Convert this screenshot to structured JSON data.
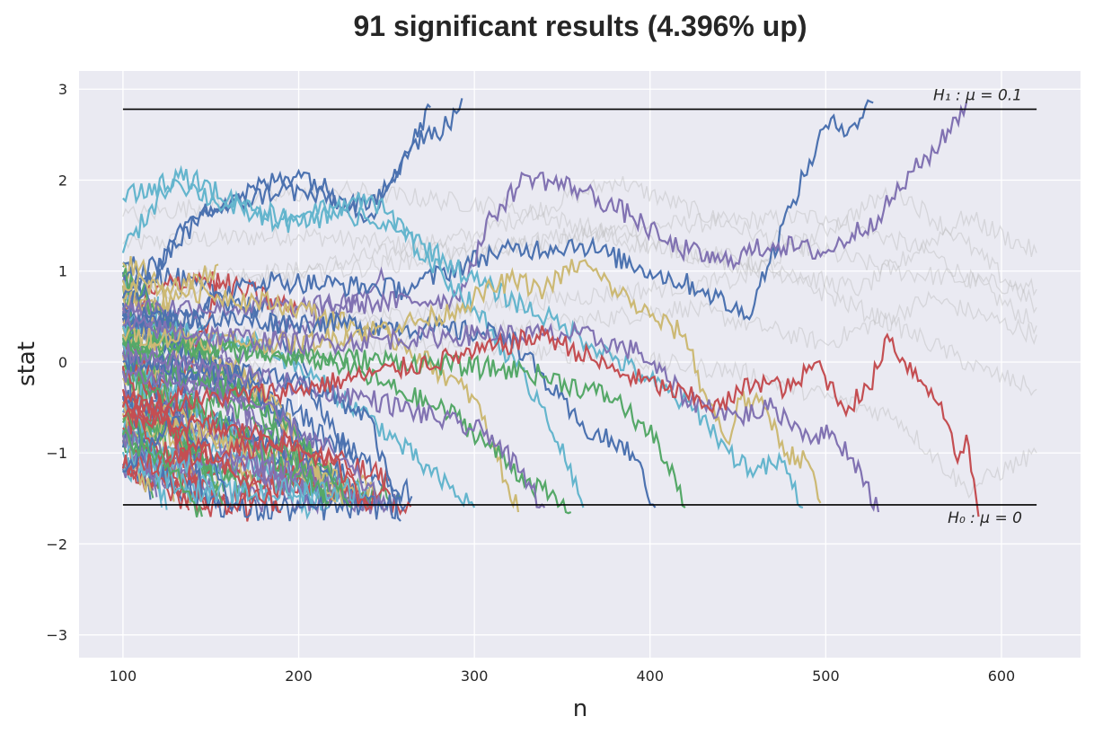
{
  "chart_data": {
    "type": "line",
    "title": "91 significant results (4.396% up)",
    "xlabel": "n",
    "ylabel": "stat",
    "xlim": [
      75,
      645
    ],
    "ylim": [
      -3.25,
      3.2
    ],
    "xticks": [
      100,
      200,
      300,
      400,
      500,
      600
    ],
    "yticks": [
      -3,
      -2,
      -1,
      0,
      1,
      2,
      3
    ],
    "xtick_labels": [
      "100",
      "200",
      "300",
      "400",
      "500",
      "600"
    ],
    "ytick_labels": [
      "−3",
      "−2",
      "−1",
      "0",
      "1",
      "2",
      "3"
    ],
    "grid": true,
    "background": "#eaeaf2",
    "boundaries": [
      {
        "label": "H₁ : μ = 0.1",
        "y": 2.78,
        "x_range": [
          100,
          620
        ]
      },
      {
        "label": "H₀ : μ = 0",
        "y": -1.57,
        "x_range": [
          100,
          620
        ]
      }
    ],
    "palette": [
      "#4c72b0",
      "#55a868",
      "#c44e52",
      "#8172b2",
      "#ccb974",
      "#64b5cd"
    ],
    "faded_color": "#bdbdbd",
    "highlighted_paths": [
      {
        "color": "#4c72b0",
        "points": [
          [
            100,
            0.5
          ],
          [
            140,
            1.6
          ],
          [
            190,
            1.9
          ],
          [
            240,
            1.7
          ],
          [
            262,
            2.3
          ],
          [
            275,
            2.8
          ]
        ]
      },
      {
        "color": "#4c72b0",
        "points": [
          [
            100,
            0.7
          ],
          [
            150,
            1.7
          ],
          [
            200,
            2.1
          ],
          [
            240,
            1.6
          ],
          [
            265,
            2.4
          ],
          [
            285,
            2.6
          ],
          [
            293,
            2.9
          ]
        ]
      },
      {
        "color": "#4c72b0",
        "points": [
          [
            100,
            0.3
          ],
          [
            180,
            0.9
          ],
          [
            260,
            0.8
          ],
          [
            310,
            1.2
          ],
          [
            360,
            1.3
          ],
          [
            400,
            1.0
          ],
          [
            430,
            0.8
          ],
          [
            455,
            0.5
          ],
          [
            480,
            1.7
          ],
          [
            500,
            2.6
          ],
          [
            515,
            2.6
          ],
          [
            527,
            2.85
          ]
        ]
      },
      {
        "color": "#8172b2",
        "points": [
          [
            100,
            0.6
          ],
          [
            200,
            0.6
          ],
          [
            290,
            0.7
          ],
          [
            310,
            1.6
          ],
          [
            330,
            2.05
          ],
          [
            360,
            1.9
          ],
          [
            390,
            1.6
          ],
          [
            410,
            1.3
          ],
          [
            440,
            1.1
          ],
          [
            470,
            1.3
          ],
          [
            500,
            1.2
          ],
          [
            530,
            1.6
          ],
          [
            550,
            2.1
          ],
          [
            565,
            2.4
          ],
          [
            580,
            2.85
          ]
        ]
      },
      {
        "color": "#4c72b0",
        "points": [
          [
            100,
            -1.2
          ],
          [
            130,
            -0.6
          ],
          [
            150,
            -1.0
          ],
          [
            160,
            -1.6
          ]
        ]
      },
      {
        "color": "#55a868",
        "points": [
          [
            100,
            -0.8
          ],
          [
            130,
            -1.2
          ],
          [
            145,
            -1.7
          ]
        ]
      },
      {
        "color": "#c44e52",
        "points": [
          [
            100,
            -0.3
          ],
          [
            140,
            -0.9
          ],
          [
            170,
            -1.3
          ],
          [
            190,
            -1.65
          ]
        ]
      },
      {
        "color": "#55a868",
        "points": [
          [
            100,
            0.2
          ],
          [
            160,
            -0.3
          ],
          [
            200,
            -0.8
          ],
          [
            230,
            -1.6
          ]
        ]
      },
      {
        "color": "#8172b2",
        "points": [
          [
            100,
            -0.1
          ],
          [
            170,
            -0.4
          ],
          [
            220,
            -1.0
          ],
          [
            250,
            -1.6
          ]
        ]
      },
      {
        "color": "#64b5cd",
        "points": [
          [
            100,
            0.4
          ],
          [
            180,
            0.2
          ],
          [
            240,
            -0.6
          ],
          [
            280,
            -1.3
          ],
          [
            300,
            -1.6
          ]
        ]
      },
      {
        "color": "#4c72b0",
        "points": [
          [
            100,
            0.0
          ],
          [
            200,
            -0.2
          ],
          [
            240,
            -0.6
          ],
          [
            258,
            -1.75
          ]
        ]
      },
      {
        "color": "#c44e52",
        "points": [
          [
            100,
            -0.6
          ],
          [
            180,
            -0.8
          ],
          [
            220,
            -1.1
          ],
          [
            240,
            -1.6
          ]
        ]
      },
      {
        "color": "#ccb974",
        "points": [
          [
            100,
            0.9
          ],
          [
            200,
            0.6
          ],
          [
            260,
            0.2
          ],
          [
            300,
            -0.4
          ],
          [
            325,
            -1.65
          ]
        ]
      },
      {
        "color": "#55a868",
        "points": [
          [
            100,
            0.3
          ],
          [
            220,
            0.0
          ],
          [
            290,
            -0.6
          ],
          [
            330,
            -1.3
          ],
          [
            355,
            -1.65
          ]
        ]
      },
      {
        "color": "#8172b2",
        "points": [
          [
            100,
            0.1
          ],
          [
            240,
            -0.4
          ],
          [
            310,
            -0.8
          ],
          [
            340,
            -1.6
          ]
        ]
      },
      {
        "color": "#64b5cd",
        "points": [
          [
            100,
            1.2
          ],
          [
            130,
            2.1
          ],
          [
            160,
            1.8
          ],
          [
            190,
            1.6
          ],
          [
            220,
            1.7
          ],
          [
            260,
            1.4
          ],
          [
            300,
            0.6
          ],
          [
            340,
            -0.5
          ],
          [
            362,
            -1.6
          ]
        ]
      },
      {
        "color": "#4c72b0",
        "points": [
          [
            100,
            0.5
          ],
          [
            250,
            0.4
          ],
          [
            320,
            0.3
          ],
          [
            360,
            -0.7
          ],
          [
            390,
            -1.0
          ],
          [
            403,
            -1.6
          ]
        ]
      },
      {
        "color": "#55a868",
        "points": [
          [
            100,
            0.2
          ],
          [
            260,
            0.0
          ],
          [
            330,
            -0.1
          ],
          [
            380,
            -0.4
          ],
          [
            405,
            -0.9
          ],
          [
            420,
            -1.6
          ]
        ]
      },
      {
        "color": "#64b5cd",
        "points": [
          [
            100,
            1.8
          ],
          [
            130,
            2.0
          ],
          [
            160,
            1.7
          ],
          [
            200,
            1.5
          ],
          [
            240,
            1.8
          ],
          [
            270,
            1.3
          ],
          [
            300,
            0.9
          ],
          [
            350,
            0.4
          ],
          [
            400,
            -0.2
          ],
          [
            430,
            -0.6
          ],
          [
            445,
            -1.0
          ],
          [
            460,
            -1.2
          ],
          [
            475,
            -1.1
          ],
          [
            487,
            -1.6
          ]
        ]
      },
      {
        "color": "#ccb974",
        "points": [
          [
            100,
            0.3
          ],
          [
            200,
            0.2
          ],
          [
            280,
            0.5
          ],
          [
            320,
            0.9
          ],
          [
            340,
            0.8
          ],
          [
            360,
            1.1
          ],
          [
            380,
            0.8
          ],
          [
            400,
            0.5
          ],
          [
            420,
            0.3
          ],
          [
            430,
            -0.3
          ],
          [
            445,
            -0.9
          ],
          [
            450,
            -0.4
          ],
          [
            465,
            -0.5
          ],
          [
            478,
            -1.0
          ],
          [
            490,
            -1.1
          ],
          [
            497,
            -1.55
          ]
        ]
      },
      {
        "color": "#8172b2",
        "points": [
          [
            100,
            0.4
          ],
          [
            200,
            0.2
          ],
          [
            300,
            0.3
          ],
          [
            360,
            0.3
          ],
          [
            395,
            0.1
          ],
          [
            420,
            -0.4
          ],
          [
            450,
            -0.6
          ],
          [
            470,
            -0.5
          ],
          [
            490,
            -0.8
          ],
          [
            505,
            -0.8
          ],
          [
            520,
            -1.2
          ],
          [
            530,
            -1.65
          ]
        ]
      },
      {
        "color": "#c44e52",
        "points": [
          [
            100,
            -0.5
          ],
          [
            200,
            -0.3
          ],
          [
            300,
            0.1
          ],
          [
            340,
            0.3
          ],
          [
            380,
            -0.1
          ],
          [
            410,
            -0.3
          ],
          [
            440,
            -0.5
          ],
          [
            460,
            -0.2
          ],
          [
            480,
            -0.3
          ],
          [
            495,
            0.0
          ],
          [
            510,
            -0.5
          ],
          [
            525,
            -0.3
          ],
          [
            535,
            0.3
          ],
          [
            545,
            0.0
          ],
          [
            560,
            -0.3
          ],
          [
            570,
            -0.7
          ],
          [
            575,
            -1.1
          ],
          [
            580,
            -0.8
          ],
          [
            587,
            -1.7
          ]
        ]
      }
    ],
    "faded_paths": [
      [
        [
          100,
          1.3
        ],
        [
          200,
          1.4
        ],
        [
          300,
          1.2
        ],
        [
          400,
          1.5
        ],
        [
          500,
          1.6
        ],
        [
          560,
          1.2
        ],
        [
          620,
          0.4
        ]
      ],
      [
        [
          100,
          0.9
        ],
        [
          200,
          1.0
        ],
        [
          300,
          1.4
        ],
        [
          380,
          2.0
        ],
        [
          460,
          1.4
        ],
        [
          540,
          1.0
        ],
        [
          620,
          0.8
        ]
      ],
      [
        [
          100,
          0.4
        ],
        [
          200,
          0.6
        ],
        [
          300,
          0.3
        ],
        [
          420,
          0.6
        ],
        [
          500,
          0.2
        ],
        [
          560,
          0.7
        ],
        [
          620,
          0.3
        ]
      ],
      [
        [
          100,
          1.6
        ],
        [
          220,
          1.9
        ],
        [
          320,
          1.7
        ],
        [
          420,
          1.2
        ],
        [
          520,
          0.8
        ],
        [
          580,
          1.6
        ],
        [
          620,
          1.2
        ]
      ],
      [
        [
          100,
          0.1
        ],
        [
          250,
          0.5
        ],
        [
          350,
          0.7
        ],
        [
          450,
          0.9
        ],
        [
          540,
          1.9
        ],
        [
          580,
          1.3
        ],
        [
          620,
          0.6
        ]
      ],
      [
        [
          100,
          -0.2
        ],
        [
          250,
          0.2
        ],
        [
          350,
          0.1
        ],
        [
          450,
          -0.1
        ],
        [
          540,
          -0.6
        ],
        [
          580,
          -1.4
        ],
        [
          620,
          -1.0
        ]
      ],
      [
        [
          100,
          0.7
        ],
        [
          260,
          1.1
        ],
        [
          360,
          1.4
        ],
        [
          460,
          1.1
        ],
        [
          540,
          0.4
        ],
        [
          590,
          -0.1
        ],
        [
          620,
          -0.3
        ]
      ]
    ],
    "cluster_paths": 70
  }
}
